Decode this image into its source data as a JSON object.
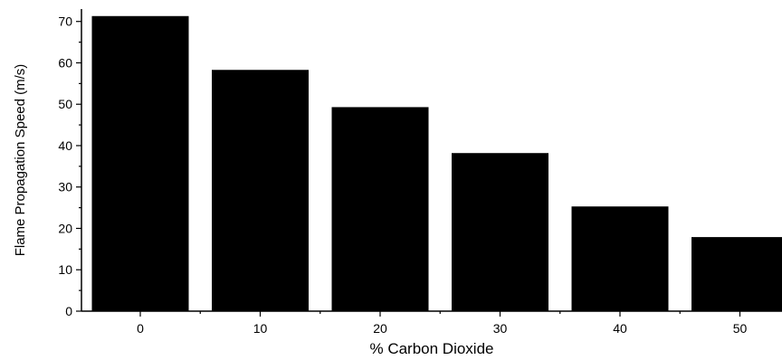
{
  "chart_data": {
    "type": "bar",
    "categories": [
      "0",
      "10",
      "20",
      "30",
      "40",
      "50"
    ],
    "values": [
      71.3,
      58.3,
      49.3,
      38.2,
      25.3,
      17.9
    ],
    "xlabel": "% Carbon Dioxide",
    "ylabel": "Flame Propagation Speed (m/s)",
    "ylim": [
      0,
      73
    ],
    "yticks": [
      "0",
      "10",
      "20",
      "30",
      "40",
      "50",
      "60",
      "70"
    ],
    "bar_color": "#000000",
    "grid": false,
    "legend": "none"
  }
}
